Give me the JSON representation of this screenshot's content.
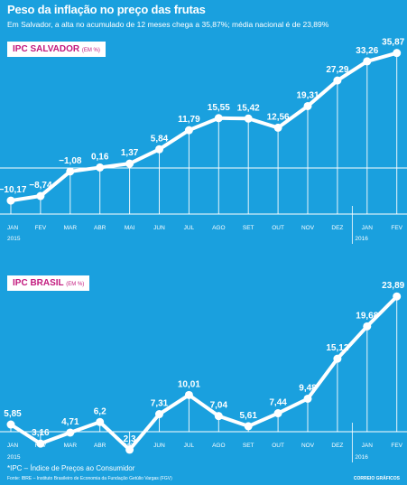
{
  "title": "Peso da inflação no preço das frutas",
  "subtitle": "Em Salvador, a alta no acumulado de 12 meses chega a 35,87%; média nacional é de 23,89%",
  "footnote": "*IPC – Índice de Preços ao Consumidor",
  "source": "Fonte: IBRE – Instituto Brasileiro de Economia da Fundação Getúlio Vargas (FGV)",
  "credit": "CORREIO GRÁFICOS",
  "colors": {
    "background": "#1aa0de",
    "line": "#ffffff",
    "badge_text": "#c2187d"
  },
  "chart_data": [
    {
      "type": "line",
      "badge": "IPC SALVADOR",
      "badge_unit": "(EM %)",
      "categories": [
        "JAN",
        "FEV",
        "MAR",
        "ABR",
        "MAI",
        "JUN",
        "JUL",
        "AGO",
        "SET",
        "OUT",
        "NOV",
        "DEZ",
        "JAN",
        "FEV"
      ],
      "year_labels": [
        "2015",
        "2016"
      ],
      "values": [
        -10.17,
        -8.74,
        -1.08,
        0.16,
        1.37,
        5.84,
        11.79,
        15.55,
        15.42,
        12.56,
        19.31,
        27.29,
        33.26,
        35.87
      ],
      "value_labels": [
        "−10,17",
        "−8,74",
        "−1,08",
        "0,16",
        "1,37",
        "5,84",
        "11,79",
        "15,55",
        "15,42",
        "12,56",
        "19,31",
        "27,29",
        "33,26",
        "35,87"
      ],
      "zero_line": true
    },
    {
      "type": "line",
      "badge": "IPC BRASIL",
      "badge_unit": "(EM %)",
      "categories": [
        "JAN",
        "FEV",
        "MAR",
        "ABR",
        "MAI",
        "JUN",
        "JUL",
        "AGO",
        "SET",
        "OUT",
        "NOV",
        "DEZ",
        "JAN",
        "FEV"
      ],
      "year_labels": [
        "2015",
        "2016"
      ],
      "values": [
        5.85,
        3.16,
        4.71,
        6.2,
        2.3,
        7.31,
        10.01,
        7.04,
        5.61,
        7.44,
        9.48,
        15.12,
        19.68,
        23.89
      ],
      "value_labels": [
        "5,85",
        "3,16",
        "4,71",
        "6,2",
        "2,3",
        "7,31",
        "10,01",
        "7,04",
        "5,61",
        "7,44",
        "9,48",
        "15,12",
        "19,68",
        "23,89"
      ],
      "zero_line": false
    }
  ]
}
